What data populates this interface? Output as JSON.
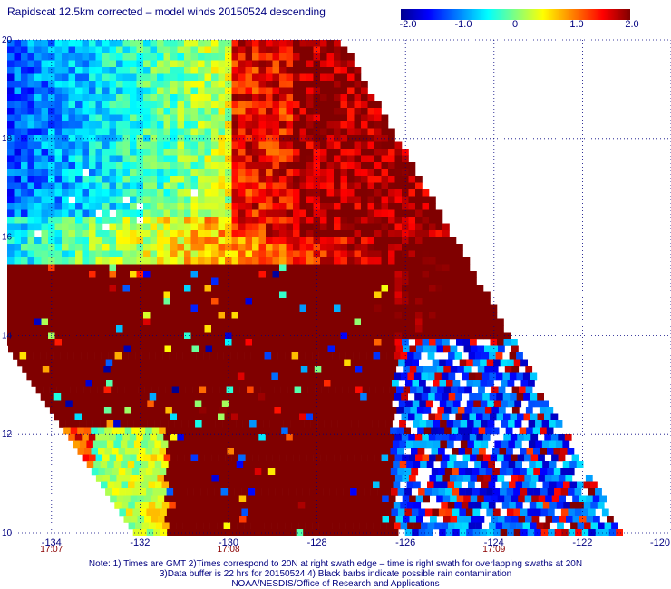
{
  "title": "Rapidscat 12.5km corrected – model winds 20150524 descending",
  "colorbar": {
    "ticks": [
      "-2.0",
      "-1.0",
      "0",
      "1.0",
      "2.0"
    ],
    "range": [
      -2.0,
      2.0
    ]
  },
  "map": {
    "lat_range": [
      10,
      20
    ],
    "lon_range": [
      -135,
      -120
    ],
    "lat_ticks": [
      "20",
      "18",
      "16",
      "14",
      "12",
      "10"
    ],
    "lon_ticks": [
      "-134",
      "-132",
      "-130",
      "-128",
      "-126",
      "-124",
      "-122",
      "-120"
    ],
    "time_labels": [
      {
        "lon": -134,
        "text": "17:07"
      },
      {
        "lon": -130,
        "text": "17:08"
      },
      {
        "lon": -124,
        "text": "17:09"
      }
    ],
    "colors": {
      "negative": "#0000ff",
      "neutral": "#00ffff",
      "positive": "#ff0000",
      "strong_positive": "#8b0000",
      "text": "#000080",
      "time_text": "#8b0000"
    }
  },
  "notes": {
    "line1": "Note: 1) Times are GMT 2)Times correspond to 20N at right swath edge – time is right swath for overlapping swaths at 20N",
    "line2": "3)Data buffer is 22 hrs for 20150524 4) Black barbs indicate possible rain contamination",
    "line3": "NOAA/NESDIS/Office of Research and Applications"
  }
}
